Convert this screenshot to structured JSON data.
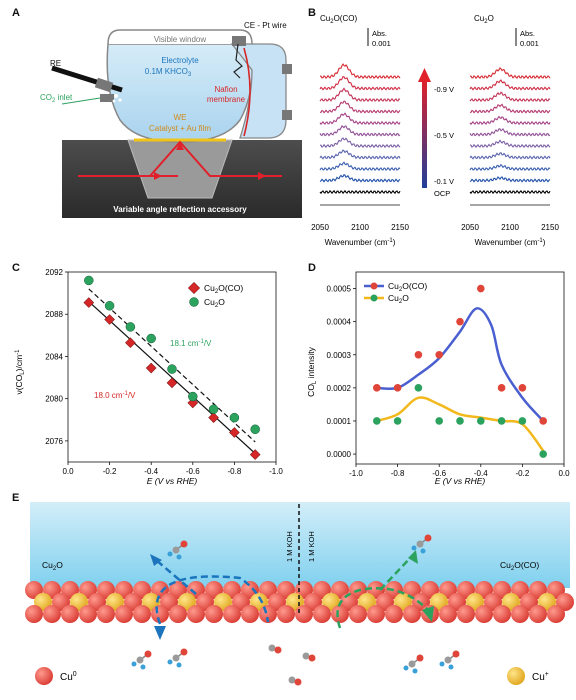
{
  "panels": {
    "a": "A",
    "b": "B",
    "c": "C",
    "d": "D",
    "e": "E"
  },
  "panelA": {
    "visible_window": "Visible window",
    "ce": "CE - Pt wire",
    "re": "RE",
    "electrolyte": "Electrolyte",
    "khco3": "0.1M KHCO",
    "khco3_sub": "3",
    "nafion1": "Nafion",
    "nafion2": "membrane",
    "co2_inlet": "CO",
    "co2_sub": "2",
    "co2_inlet_tail": " inlet",
    "we": "WE",
    "catalyst": "Catalyst + Au film",
    "accessory": "Variable angle reflection accessory"
  },
  "panelB": {
    "left_title": "Cu",
    "left_title_sub": "2",
    "left_title_tail": "O(CO)",
    "right_title": "Cu",
    "right_title_sub": "2",
    "right_title_tail": "O",
    "abs": "Abs.",
    "abs_val": "0.001",
    "volt_labels": [
      "-0.9 V",
      "-0.5 V",
      "-0.1 V",
      "OCP"
    ],
    "x_ticks": [
      "2050",
      "2100",
      "2150"
    ],
    "xlabel": "Wavenumber (cm",
    "xlabel_sup": "-1",
    "xlabel_tail": ")",
    "colors": [
      "#000000",
      "#1f4fa8",
      "#3a5fb0",
      "#5a64ae",
      "#7a5ea5",
      "#915097",
      "#a54385",
      "#b53a6f",
      "#c33458",
      "#cf2e44",
      "#d62a32"
    ]
  },
  "chart_data": [
    {
      "id": "C",
      "type": "scatter",
      "xlabel": "E (V vs RHE)",
      "ylabel": "ν(CO",
      "ylabel_sub": "L",
      "ylabel_tail": ")/cm",
      "ylabel_sup": "-1",
      "xlim": [
        0,
        -1.0
      ],
      "ylim": [
        2074,
        2092
      ],
      "x_ticks": [
        "0.0",
        "-0.2",
        "-0.4",
        "-0.6",
        "-0.8",
        "-1.0"
      ],
      "y_ticks": [
        "2076",
        "2080",
        "2084",
        "2088",
        "2092"
      ],
      "series": [
        {
          "name": "Cu2O(CO)",
          "name_main": "Cu",
          "name_sub": "2",
          "name_tail": "O(CO)",
          "color": "#d62728",
          "marker": "diamond",
          "x": [
            -0.1,
            -0.2,
            -0.3,
            -0.4,
            -0.5,
            -0.6,
            -0.7,
            -0.8,
            -0.9
          ],
          "y": [
            2089.1,
            2087.5,
            2085.3,
            2082.9,
            2081.5,
            2079.6,
            2078.2,
            2076.8,
            2074.7
          ],
          "fit": {
            "x": [
              -0.1,
              -0.9
            ],
            "y": [
              2089.2,
              2074.8
            ],
            "style": "solid"
          },
          "slope_label": "18.0 cm",
          "slope_sup": "-1",
          "slope_tail": "/V"
        },
        {
          "name": "Cu2O",
          "name_main": "Cu",
          "name_sub": "2",
          "name_tail": "O",
          "color": "#2ca25f",
          "marker": "circle",
          "x": [
            -0.1,
            -0.2,
            -0.3,
            -0.4,
            -0.5,
            -0.6,
            -0.7,
            -0.8,
            -0.9
          ],
          "y": [
            2091.2,
            2088.8,
            2086.8,
            2085.7,
            2082.8,
            2080.2,
            2079.0,
            2078.2,
            2077.1
          ],
          "fit": {
            "x": [
              -0.1,
              -0.9
            ],
            "y": [
              2090.4,
              2075.9
            ],
            "style": "dashed"
          },
          "slope_label": "18.1 cm",
          "slope_sup": "-1",
          "slope_tail": "/V"
        }
      ]
    },
    {
      "id": "D",
      "type": "line",
      "xlabel": "E (V vs RHE)",
      "ylabel": "CO",
      "ylabel_sub": "L",
      "ylabel_tail": " intensity",
      "xlim": [
        -1.0,
        0.0
      ],
      "ylim": [
        -3e-05,
        0.00055
      ],
      "x_ticks": [
        "-1.0",
        "-0.8",
        "-0.6",
        "-0.4",
        "-0.2",
        "0.0"
      ],
      "y_ticks": [
        "0.0000",
        "0.0001",
        "0.0002",
        "0.0003",
        "0.0004",
        "0.0005"
      ],
      "series": [
        {
          "name": "Cu2O(CO)",
          "name_main": "Cu",
          "name_sub": "2",
          "name_tail": "O(CO)",
          "color": "#4a5fd0",
          "marker_color": "#e0453a",
          "points_x": [
            -0.9,
            -0.8,
            -0.7,
            -0.6,
            -0.5,
            -0.4,
            -0.3,
            -0.2,
            -0.1
          ],
          "points_y": [
            0.0002,
            0.0002,
            0.0003,
            0.0003,
            0.0004,
            0.0005,
            0.0002,
            0.0002,
            0.0001
          ],
          "curve_x": [
            -0.9,
            -0.8,
            -0.7,
            -0.6,
            -0.5,
            -0.42,
            -0.35,
            -0.3,
            -0.2,
            -0.1
          ],
          "curve_y": [
            0.0002,
            0.0002,
            0.00024,
            0.00029,
            0.00037,
            0.00044,
            0.00039,
            0.00027,
            0.00017,
            0.0001
          ]
        },
        {
          "name": "Cu2O",
          "name_main": "Cu",
          "name_sub": "2",
          "name_tail": "O",
          "color": "#f2b81c",
          "marker_color": "#2ca25f",
          "points_x": [
            -0.9,
            -0.8,
            -0.7,
            -0.6,
            -0.5,
            -0.4,
            -0.3,
            -0.2,
            -0.1
          ],
          "points_y": [
            0.0001,
            0.0001,
            0.0002,
            0.0001,
            0.0001,
            0.0001,
            0.0001,
            0.0001,
            0.0
          ],
          "curve_x": [
            -0.9,
            -0.8,
            -0.7,
            -0.6,
            -0.5,
            -0.4,
            -0.3,
            -0.2,
            -0.1
          ],
          "curve_y": [
            0.0001,
            0.00012,
            0.00017,
            0.00015,
            0.00012,
            0.00011,
            0.0001,
            9e-05,
            1e-05
          ]
        }
      ]
    }
  ],
  "panelE": {
    "left_label": "Cu",
    "left_label_sub": "2",
    "left_label_tail": "O",
    "right_label": "Cu",
    "right_label_sub": "2",
    "right_label_tail": "O(CO)",
    "koh1": "1 M KOH",
    "koh2": "1 M KOH",
    "legend_cu0": "Cu",
    "legend_cu0_sup": "0",
    "legend_cu1": "Cu",
    "legend_cu1_sup": "+"
  }
}
